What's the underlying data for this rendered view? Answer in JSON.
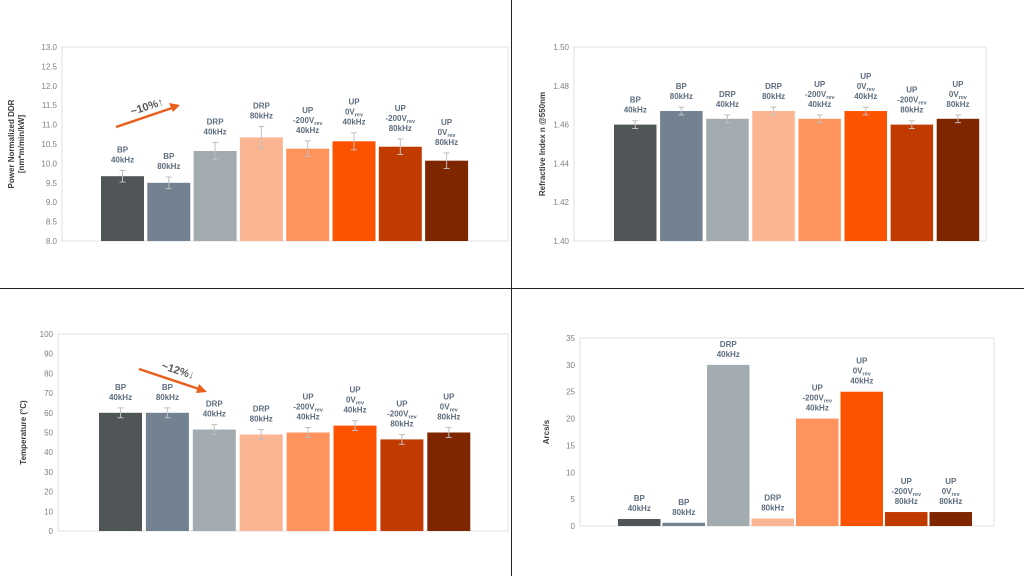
{
  "colors": [
    "#505558",
    "#738290",
    "#a2abb0",
    "#fcb592",
    "#fe935e",
    "#fd5300",
    "#c13b00",
    "#7d2600"
  ],
  "arrow_color": "#e8601c",
  "chart_data": [
    {
      "type": "bar",
      "ylabel": "Power Normalized DDR",
      "ylabel2": "[nm*m/min/kW]",
      "ylim": [
        8.0,
        13.0
      ],
      "yticks": [
        "8.0",
        "8.5",
        "9.0",
        "9.5",
        "10.0",
        "10.5",
        "11.0",
        "11.5",
        "12.0",
        "12.5",
        "13.0"
      ],
      "values": [
        9.67,
        9.5,
        10.32,
        10.67,
        10.38,
        10.57,
        10.43,
        10.07
      ],
      "errors": [
        0.15,
        0.15,
        0.22,
        0.28,
        0.2,
        0.22,
        0.2,
        0.2
      ],
      "annotation": "~10%↑"
    },
    {
      "type": "bar",
      "ylabel": "Refractive Index n @550nm",
      "ylim": [
        1.4,
        1.5
      ],
      "yticks": [
        "1.40",
        "1.42",
        "1.44",
        "1.46",
        "1.48",
        "1.50"
      ],
      "values": [
        1.46,
        1.467,
        1.463,
        1.467,
        1.463,
        1.467,
        1.46,
        1.463
      ],
      "errors": [
        0.002,
        0.002,
        0.002,
        0.002,
        0.002,
        0.002,
        0.002,
        0.002
      ]
    },
    {
      "type": "bar",
      "ylabel": "Temperature (°C)",
      "ylim": [
        0,
        100
      ],
      "yticks": [
        "0",
        "10",
        "20",
        "30",
        "40",
        "50",
        "60",
        "70",
        "80",
        "90",
        "100"
      ],
      "values": [
        60,
        60,
        51.5,
        49,
        50,
        53.5,
        46.5,
        50
      ],
      "errors": [
        2.5,
        2.5,
        2.5,
        2.5,
        2.5,
        2.5,
        2.5,
        2.5
      ],
      "annotation": "~12%↓"
    },
    {
      "type": "bar",
      "ylabel": "Arcs/s",
      "ylim": [
        0,
        35
      ],
      "yticks": [
        "0",
        "5",
        "10",
        "15",
        "20",
        "25",
        "30",
        "35"
      ],
      "values": [
        1.3,
        0.6,
        30,
        1.4,
        20,
        25,
        2.6,
        2.6
      ]
    }
  ],
  "bar_labels": [
    [
      "BP",
      "40kHz"
    ],
    [
      "BP",
      "80kHz"
    ],
    [
      "DRP",
      "40kHz"
    ],
    [
      "DRP",
      "80kHz"
    ],
    [
      "UP",
      "-200V_rev",
      "40kHz"
    ],
    [
      "UP",
      "0V_rev",
      "40kHz"
    ],
    [
      "UP",
      "-200V_rev",
      "80kHz"
    ],
    [
      "UP",
      "0V_rev",
      "80kHz"
    ]
  ]
}
